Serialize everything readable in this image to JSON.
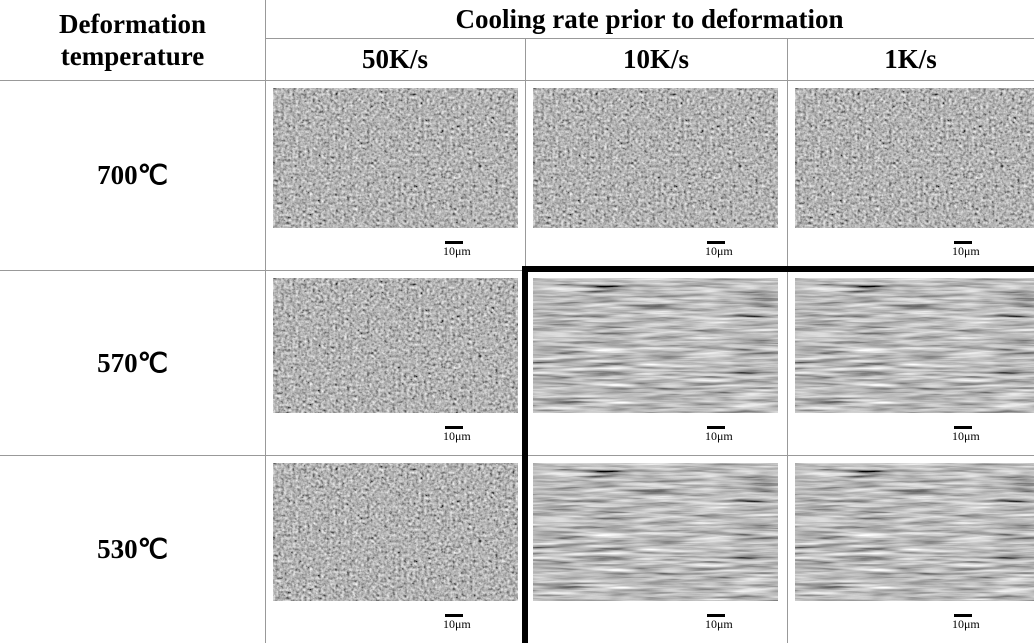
{
  "header": {
    "row_label": "Deformation temperature",
    "group_label": "Cooling rate prior to deformation",
    "columns": [
      "50K/s",
      "10K/s",
      "1K/s"
    ]
  },
  "rows": [
    {
      "label": "700℃",
      "scale_bars": [
        "10μm",
        "10μm",
        "10μm"
      ]
    },
    {
      "label": "570℃",
      "scale_bars": [
        "10μm",
        "10μm",
        "10μm"
      ]
    },
    {
      "label": "530℃",
      "scale_bars": [
        "10μm",
        "10μm",
        "10μm"
      ]
    }
  ]
}
